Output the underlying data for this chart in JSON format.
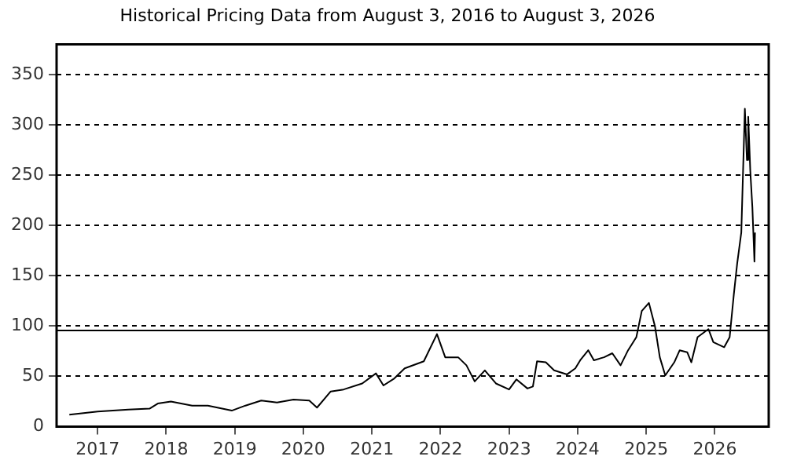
{
  "chart_data": {
    "type": "line",
    "title": "Historical Pricing Data from August 3, 2016 to August 3, 2026",
    "x": [
      "2016-08-03",
      "2017-01-01",
      "2017-06-13",
      "2017-10-04",
      "2017-11-17",
      "2018-01-26",
      "2018-05-19",
      "2018-08-11",
      "2018-12-16",
      "2019-02-27",
      "2019-05-22",
      "2019-08-14",
      "2019-11-10",
      "2020-02-02",
      "2020-03-14",
      "2020-05-26",
      "2020-08-03",
      "2020-11-10",
      "2021-01-22",
      "2021-03-03",
      "2021-04-30",
      "2021-06-24",
      "2021-10-04",
      "2021-12-13",
      "2022-01-26",
      "2022-04-05",
      "2022-05-19",
      "2022-07-02",
      "2022-08-25",
      "2022-10-23",
      "2023-01-01",
      "2023-02-09",
      "2023-04-09",
      "2023-05-08",
      "2023-05-30",
      "2023-07-16",
      "2023-08-29",
      "2023-11-06",
      "2023-12-20",
      "2024-01-15",
      "2024-02-27",
      "2024-03-28",
      "2024-05-21",
      "2024-07-04",
      "2024-08-17",
      "2024-09-26",
      "2024-11-09",
      "2024-12-08",
      "2025-01-15",
      "2025-02-16",
      "2025-03-14",
      "2025-04-12",
      "2025-05-30",
      "2025-06-28",
      "2025-08-07",
      "2025-08-29",
      "2025-10-01",
      "2025-11-28",
      "2025-12-24",
      "2026-02-20",
      "2026-03-21",
      "2026-04-12",
      "2026-04-30",
      "2026-05-22",
      "2026-06-10",
      "2026-06-21",
      "2026-06-28",
      "2026-07-09",
      "2026-07-20",
      "2026-07-31",
      "2026-08-03"
    ],
    "series": [
      {
        "color": "#000000",
        "values": [
          12,
          15,
          17,
          18,
          23,
          25,
          21,
          21,
          16,
          21,
          26,
          24,
          27,
          26,
          19,
          35,
          37,
          43,
          53,
          41,
          48,
          58,
          65,
          92,
          69,
          69,
          61,
          45,
          56,
          43,
          37,
          47,
          38,
          40,
          65,
          64,
          56,
          52,
          58,
          66,
          76,
          66,
          69,
          73,
          61,
          76,
          89,
          115,
          123,
          100,
          69,
          51,
          64,
          76,
          74,
          64,
          89,
          97,
          84,
          79,
          89,
          131,
          162,
          193,
          316,
          265,
          308,
          254,
          218,
          164,
          193
        ]
      }
    ],
    "xlim": [
      "2016-05-27",
      "2026-10-15"
    ],
    "xticks": [
      "2017",
      "2018",
      "2019",
      "2020",
      "2021",
      "2022",
      "2023",
      "2024",
      "2025",
      "2026"
    ],
    "ylim": [
      0,
      380
    ],
    "yticks": [
      0,
      50,
      100,
      150,
      200,
      250,
      300,
      350
    ],
    "ref_lines": [
      {
        "axis": "y",
        "value": 97,
        "color": "#000000",
        "line_style": "solid"
      }
    ],
    "grid": "y",
    "legend": false,
    "marker": "none",
    "line_style": "solid"
  }
}
